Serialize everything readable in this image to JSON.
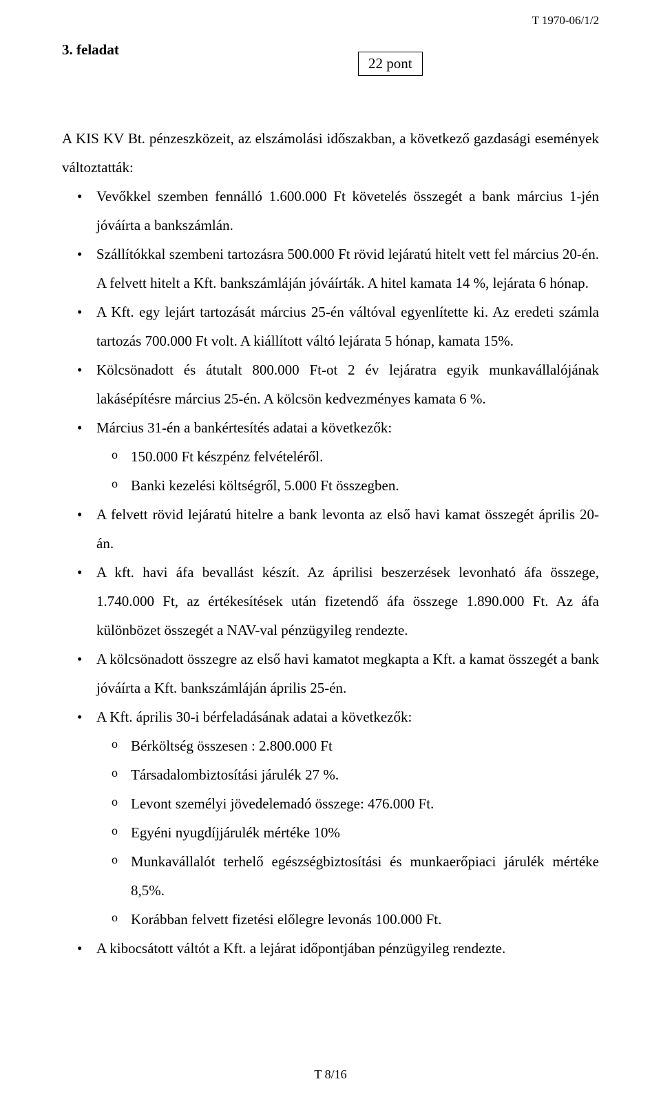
{
  "header_code": "T 1970-06/1/2",
  "task_title": "3. feladat",
  "points_label": "22 pont",
  "intro": "A KIS KV  Bt. pénzeszközeit, az elszámolási időszakban, a következő gazdasági események változtatták:",
  "bullets": [
    {
      "text": "Vevőkkel szemben fennálló 1.600.000 Ft követelés összegét a bank március 1-jén jóváírta a bankszámlán."
    },
    {
      "text": "Szállítókkal szembeni tartozásra 500.000 Ft rövid lejáratú hitelt vett fel március 20-én. A felvett hitelt a Kft. bankszámláján jóváírták. A hitel kamata 14 %, lejárata  6 hónap."
    },
    {
      "text": "A Kft. egy lejárt tartozását március 25-én váltóval egyenlítette ki. Az eredeti számla tartozás 700.000 Ft volt. A kiállított váltó lejárata 5 hónap, kamata 15%."
    },
    {
      "text": "Kölcsönadott és átutalt 800.000 Ft-ot 2 év lejáratra egyik munkavállalójának lakásépítésre március 25-én. A kölcsön kedvezményes kamata 6 %."
    },
    {
      "text": "Március 31-én a  bankértesítés adatai a következők:",
      "sub": [
        "150.000 Ft  készpénz felvételéről.",
        "Banki kezelési költségről, 5.000 Ft összegben."
      ]
    },
    {
      "text": "A felvett rövid lejáratú hitelre a bank levonta az első havi kamat összegét április 20-án."
    },
    {
      "text": "A kft. havi áfa bevallást készít. Az áprilisi beszerzések levonható áfa összege, 1.740.000 Ft, az értékesítések után fizetendő áfa összege 1.890.000 Ft. Az áfa különbözet összegét a NAV-val pénzügyileg rendezte."
    },
    {
      "text": "A kölcsönadott összegre az első havi kamatot megkapta a Kft. a kamat összegét a bank jóváírta a Kft. bankszámláján április 25-én."
    },
    {
      "text": "A Kft. április 30-i bérfeladásának adatai a következők:",
      "sub": [
        "Bérköltség összesen : 2.800.000 Ft",
        "Társadalombiztosítási járulék 27 %.",
        "Levont személyi jövedelemadó összege: 476.000 Ft.",
        "Egyéni nyugdíjjárulék mértéke 10%",
        "Munkavállalót terhelő egészségbiztosítási és munkaerőpiaci járulék mértéke 8,5%.",
        "Korábban felvett fizetési előlegre levonás 100.000 Ft."
      ]
    },
    {
      "text": "A kibocsátott váltót a Kft. a lejárat időpontjában pénzügyileg rendezte."
    }
  ],
  "footer": "T 8/16"
}
